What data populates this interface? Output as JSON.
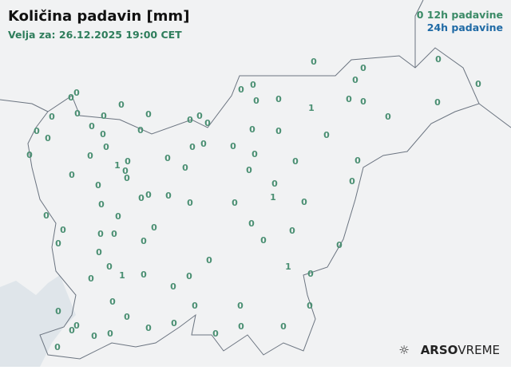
{
  "header": {
    "title": "Količina padavin [mm]",
    "valid": "Velja za: 26.12.2025 19:00 CET"
  },
  "legend": {
    "marker": "0",
    "label_12h": "12h padavine",
    "label_24h": "24h padavine",
    "color_12h": "#3a8a66",
    "color_24h": "#1f6aa5"
  },
  "logo": {
    "icon": "weather-sun-rain-icon",
    "brand": "ARSO",
    "suffix": "VREME"
  },
  "stations": [
    "0",
    "0",
    "0",
    "0",
    "0",
    "0",
    "0",
    "0",
    "0",
    "1",
    "0",
    "0",
    "0",
    "0",
    "0",
    "0",
    "0",
    "0",
    "0",
    "0",
    "0",
    "0",
    "0",
    "0",
    "0",
    "0",
    "0",
    "0",
    "0",
    "0",
    "0",
    "0",
    "0",
    "0",
    "0",
    "0",
    "0",
    "0",
    "0",
    "0",
    "0",
    "0",
    "0",
    "1",
    "0",
    "0",
    "0",
    "0",
    "0",
    "0",
    "0",
    "0",
    "0",
    "0",
    "0",
    "0",
    "0",
    "1",
    "0",
    "0",
    "0",
    "0",
    "0",
    "0",
    "0",
    "0",
    "0",
    "0",
    "0",
    "0",
    "0",
    "0",
    "0",
    "0",
    "0",
    "1",
    "0",
    "0",
    "1",
    "0",
    "0",
    "0",
    "0",
    "0",
    "0",
    "0",
    "0",
    "0",
    "0",
    "0",
    "0",
    "0",
    "0",
    "0",
    "0",
    "0",
    "0",
    "0"
  ]
}
